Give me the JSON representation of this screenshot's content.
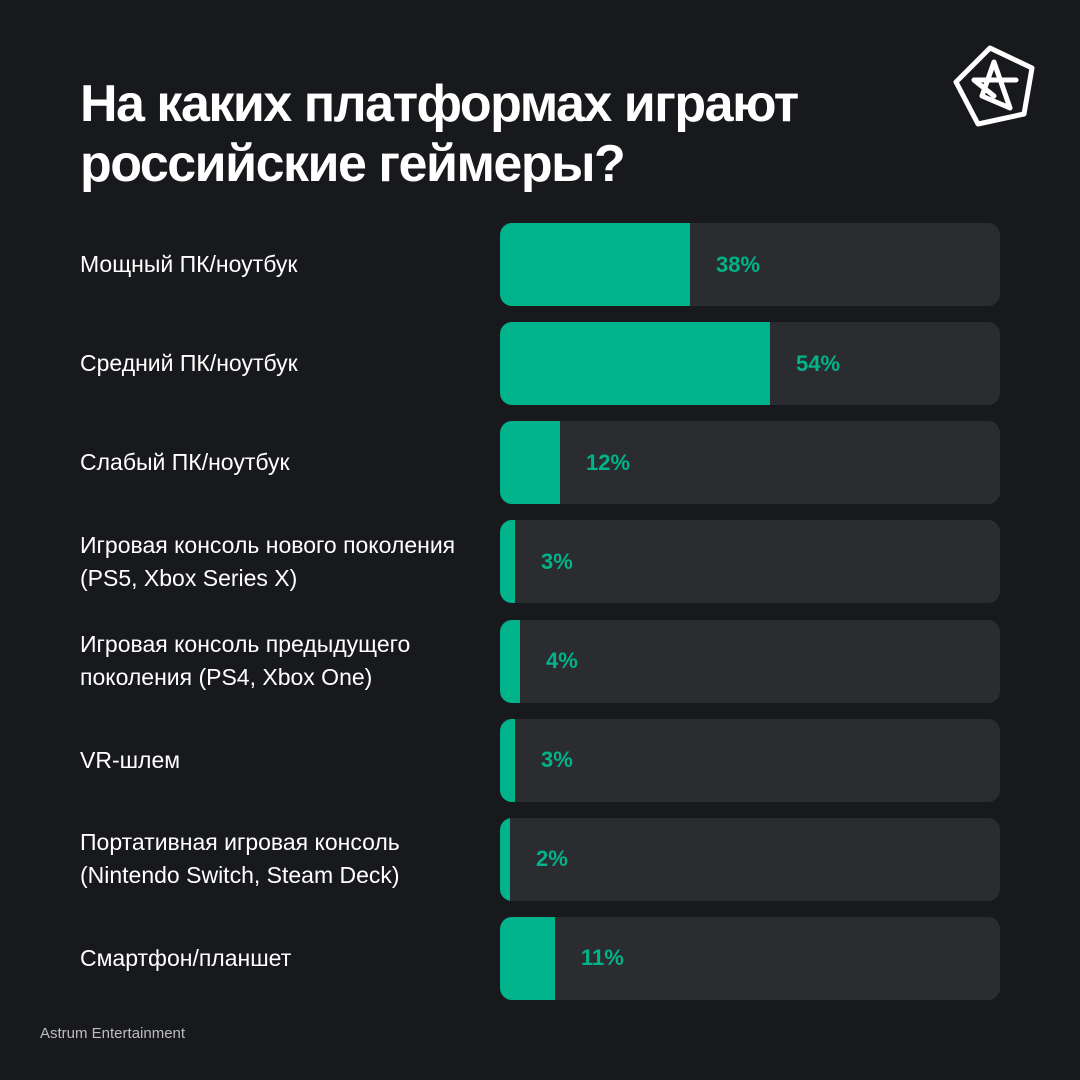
{
  "header": {
    "title": "На каких платформах играют российские геймеры?"
  },
  "logo": {
    "icon": "astrum-star-logo-icon",
    "color": "#ffffff"
  },
  "colors": {
    "background": "#18191c",
    "bar_fill": "#00b38a",
    "bar_track": "#2b2c2f"
  },
  "chart_data": {
    "type": "bar",
    "orientation": "horizontal",
    "categories": [
      "Мощный ПК/ноутбук",
      "Средний ПК/ноутбук",
      "Слабый ПК/ноутбук",
      "Игровая консоль нового поколения (PS5, Xbox Series X)",
      "Игровая консоль предыдущего поколения (PS4, Xbox One)",
      "VR-шлем",
      "Портативная игровая консоль (Nintendo Switch, Steam Deck)",
      "Смартфон/планшет"
    ],
    "values": [
      38,
      54,
      12,
      3,
      4,
      3,
      2,
      11
    ],
    "value_labels": [
      "38%",
      "54%",
      "12%",
      "3%",
      "4%",
      "3%",
      "2%",
      "11%"
    ],
    "unit": "%",
    "xlim": [
      0,
      100
    ],
    "grid": false,
    "legend": false
  },
  "footer": {
    "brand": "Astrum Entertainment"
  }
}
